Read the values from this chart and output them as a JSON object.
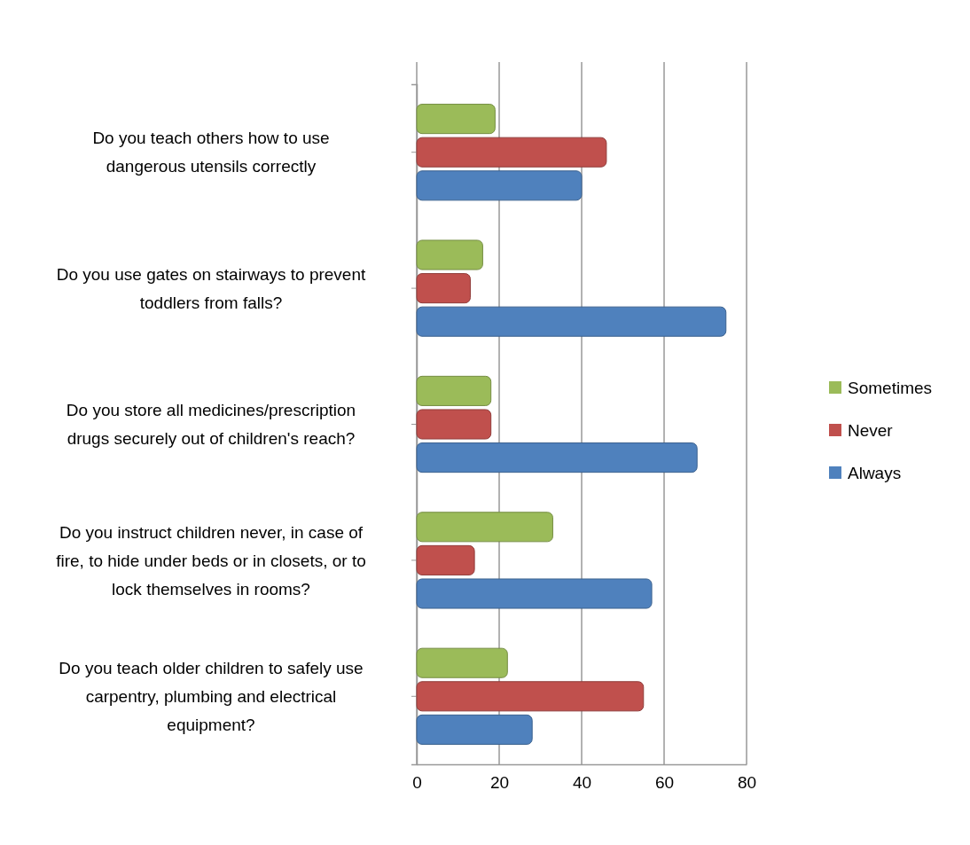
{
  "chart_data": {
    "type": "bar",
    "orientation": "horizontal",
    "categories": [
      "Do you teach others how to use dangerous utensils correctly",
      "Do you use gates on stairways to prevent toddlers from falls?",
      "Do you store all medicines/prescription drugs securely out of children's reach?",
      "Do you instruct children never, in case of fire, to hide under beds or in closets, or to lock themselves in rooms?",
      "Do you teach older children to safely use carpentry, plumbing and electrical equipment?"
    ],
    "series": [
      {
        "name": "Sometimes",
        "color": "#9bbb59",
        "values": [
          19,
          16,
          18,
          33,
          22
        ]
      },
      {
        "name": "Never",
        "color": "#c0504d",
        "values": [
          46,
          13,
          18,
          14,
          55
        ]
      },
      {
        "name": "Always",
        "color": "#4f81bd",
        "values": [
          40,
          75,
          68,
          57,
          28
        ]
      }
    ],
    "xlim": [
      0,
      80
    ],
    "xticks": [
      0,
      20,
      40,
      60,
      80
    ],
    "grid": "x",
    "legend": "right"
  }
}
